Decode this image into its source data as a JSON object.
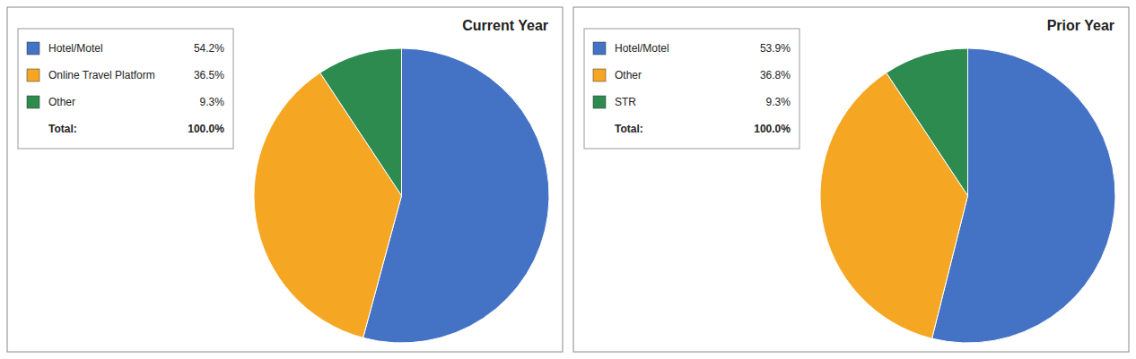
{
  "chart_data": [
    {
      "type": "pie",
      "title": "Current Year",
      "categories": [
        "Hotel/Motel",
        "Online Travel Platform",
        "Other"
      ],
      "values": [
        54.2,
        36.5,
        9.3
      ],
      "value_labels": [
        "54.2%",
        "36.5%",
        "9.3%"
      ],
      "colors": [
        "#4472C4",
        "#F5A623",
        "#2E8B50"
      ],
      "total": {
        "label": "Total:",
        "value": 100.0,
        "value_label": "100.0%"
      },
      "legend": "left"
    },
    {
      "type": "pie",
      "title": "Prior Year",
      "categories": [
        "Hotel/Motel",
        "Other",
        "STR"
      ],
      "values": [
        53.9,
        36.8,
        9.3
      ],
      "value_labels": [
        "53.9%",
        "36.8%",
        "9.3%"
      ],
      "colors": [
        "#4472C4",
        "#F5A623",
        "#2E8B50"
      ],
      "total": {
        "label": "Total:",
        "value": 100.0,
        "value_label": "100.0%"
      },
      "legend": "left"
    }
  ]
}
